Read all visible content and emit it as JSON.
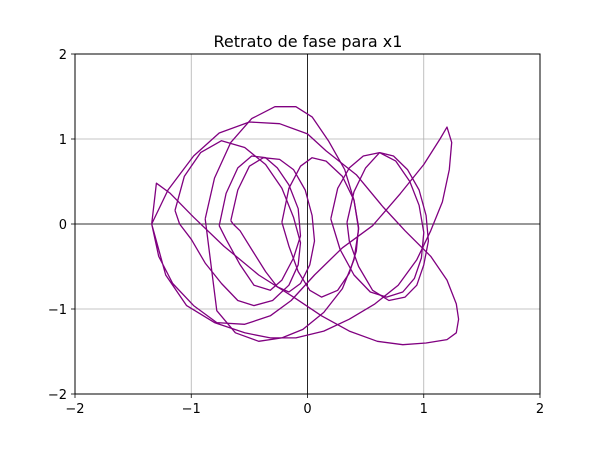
{
  "chart_data": {
    "type": "line",
    "title": "Retrato de fase para x1",
    "xlabel": "",
    "ylabel": "",
    "xlim": [
      -2,
      2
    ],
    "ylim": [
      -2,
      2
    ],
    "xticks": [
      -2,
      -1,
      0,
      1,
      2
    ],
    "yticks": [
      -2,
      -1,
      0,
      1,
      2
    ],
    "xtick_labels": [
      "−2",
      "−1",
      "0",
      "1",
      "2"
    ],
    "ytick_labels": [
      "−2",
      "−1",
      "0",
      "1",
      "2"
    ],
    "grid": true,
    "axes_lines_through_origin": true,
    "line_color": "#800080",
    "series": [
      {
        "x": [
          -1.34,
          -1.2,
          -0.98,
          -0.76,
          -0.5,
          -0.24,
          0.0,
          0.16,
          0.42,
          0.65,
          0.84,
          1.06,
          1.2,
          1.28,
          1.3,
          1.28,
          1.2,
          1.02,
          0.82,
          0.6,
          0.36,
          0.12,
          -0.12,
          -0.42,
          -0.72,
          -0.98,
          -1.18,
          -1.3,
          -1.34
        ],
        "y": [
          0.0,
          0.4,
          0.8,
          1.07,
          1.2,
          1.18,
          1.06,
          0.86,
          0.58,
          0.2,
          -0.08,
          -0.38,
          -0.66,
          -0.94,
          -1.12,
          -1.28,
          -1.36,
          -1.4,
          -1.42,
          -1.38,
          -1.26,
          -1.08,
          -0.86,
          -0.6,
          -0.26,
          0.08,
          0.36,
          0.48,
          0.0
        ]
      },
      {
        "x": [
          -1.34,
          -1.28,
          -1.16,
          -0.98,
          -0.78,
          -0.54,
          -0.32,
          -0.14,
          0.06,
          0.3,
          0.56,
          0.8,
          1.0,
          1.14,
          1.2,
          1.24,
          1.22,
          1.16,
          1.06,
          0.94,
          0.78,
          0.58,
          0.36,
          0.14,
          -0.1,
          -0.32,
          -0.54,
          -0.8,
          -1.04,
          -1.22,
          -1.34
        ],
        "y": [
          0.0,
          -0.38,
          -0.7,
          -0.96,
          -1.16,
          -1.18,
          -1.08,
          -0.9,
          -0.6,
          -0.28,
          -0.02,
          0.36,
          0.7,
          1.0,
          1.14,
          0.96,
          0.64,
          0.26,
          -0.08,
          -0.42,
          -0.72,
          -0.94,
          -1.12,
          -1.26,
          -1.34,
          -1.34,
          -1.28,
          -1.16,
          -0.96,
          -0.6,
          0.0
        ]
      },
      {
        "x": [
          -1.14,
          -1.06,
          -0.92,
          -0.74,
          -0.54,
          -0.36,
          -0.22,
          -0.12,
          -0.06,
          -0.08,
          -0.16,
          -0.3,
          -0.46,
          -0.6,
          -0.74,
          -0.88,
          -1.0,
          -1.1,
          -1.14
        ],
        "y": [
          0.16,
          0.56,
          0.84,
          0.98,
          0.9,
          0.7,
          0.42,
          0.08,
          -0.22,
          -0.48,
          -0.72,
          -0.9,
          -0.96,
          -0.9,
          -0.7,
          -0.46,
          -0.18,
          0.0,
          0.16
        ]
      },
      {
        "x": [
          -0.76,
          -0.7,
          -0.6,
          -0.48,
          -0.36,
          -0.26,
          -0.16,
          -0.08,
          -0.06,
          -0.12,
          -0.22,
          -0.32,
          -0.46,
          -0.58,
          -0.7,
          -0.76
        ],
        "y": [
          -0.02,
          0.36,
          0.66,
          0.8,
          0.78,
          0.66,
          0.46,
          0.18,
          -0.14,
          -0.4,
          -0.66,
          -0.78,
          -0.72,
          -0.48,
          -0.18,
          -0.02
        ]
      },
      {
        "x": [
          -0.66,
          -0.6,
          -0.5,
          -0.38,
          -0.24,
          -0.12,
          -0.02,
          0.04,
          0.06,
          0.02,
          -0.06,
          -0.16,
          -0.26,
          -0.36,
          -0.48,
          -0.58,
          -0.64,
          -0.66
        ],
        "y": [
          0.04,
          0.4,
          0.68,
          0.78,
          0.76,
          0.64,
          0.4,
          0.1,
          -0.2,
          -0.48,
          -0.7,
          -0.8,
          -0.74,
          -0.56,
          -0.3,
          -0.08,
          0.0,
          0.04
        ]
      },
      {
        "x": [
          -0.22,
          -0.16,
          -0.06,
          0.04,
          0.16,
          0.3,
          0.4,
          0.44,
          0.42,
          0.36,
          0.26,
          0.12,
          0.02,
          -0.08,
          -0.16,
          -0.22
        ],
        "y": [
          0.02,
          0.42,
          0.68,
          0.78,
          0.74,
          0.56,
          0.28,
          -0.04,
          -0.32,
          -0.58,
          -0.78,
          -0.86,
          -0.78,
          -0.56,
          -0.26,
          0.02
        ]
      },
      {
        "x": [
          0.2,
          0.26,
          0.36,
          0.48,
          0.62,
          0.76,
          0.88,
          0.96,
          1.0,
          0.98,
          0.92,
          0.82,
          0.68,
          0.54,
          0.4,
          0.28,
          0.2
        ],
        "y": [
          0.06,
          0.42,
          0.66,
          0.8,
          0.84,
          0.74,
          0.5,
          0.22,
          -0.1,
          -0.4,
          -0.64,
          -0.8,
          -0.86,
          -0.8,
          -0.6,
          -0.3,
          0.06
        ]
      },
      {
        "x": [
          0.34,
          0.4,
          0.5,
          0.62,
          0.74,
          0.86,
          0.96,
          1.02,
          1.04,
          1.0,
          0.94,
          0.84,
          0.7,
          0.56,
          0.44,
          0.36,
          0.34
        ],
        "y": [
          0.02,
          0.38,
          0.66,
          0.84,
          0.8,
          0.64,
          0.4,
          0.1,
          -0.2,
          -0.48,
          -0.72,
          -0.86,
          -0.9,
          -0.78,
          -0.5,
          -0.2,
          0.02
        ]
      },
      {
        "x": [
          -0.88,
          -0.8,
          -0.66,
          -0.48,
          -0.28,
          -0.1,
          0.04,
          0.18,
          0.32,
          0.4,
          0.44,
          0.4,
          0.3,
          0.14,
          -0.04,
          -0.22,
          -0.42,
          -0.62,
          -0.78,
          -0.88
        ],
        "y": [
          0.06,
          0.54,
          0.96,
          1.24,
          1.38,
          1.38,
          1.26,
          0.98,
          0.64,
          0.28,
          -0.06,
          -0.42,
          -0.76,
          -1.04,
          -1.24,
          -1.34,
          -1.38,
          -1.28,
          -1.02,
          0.06
        ]
      }
    ]
  }
}
